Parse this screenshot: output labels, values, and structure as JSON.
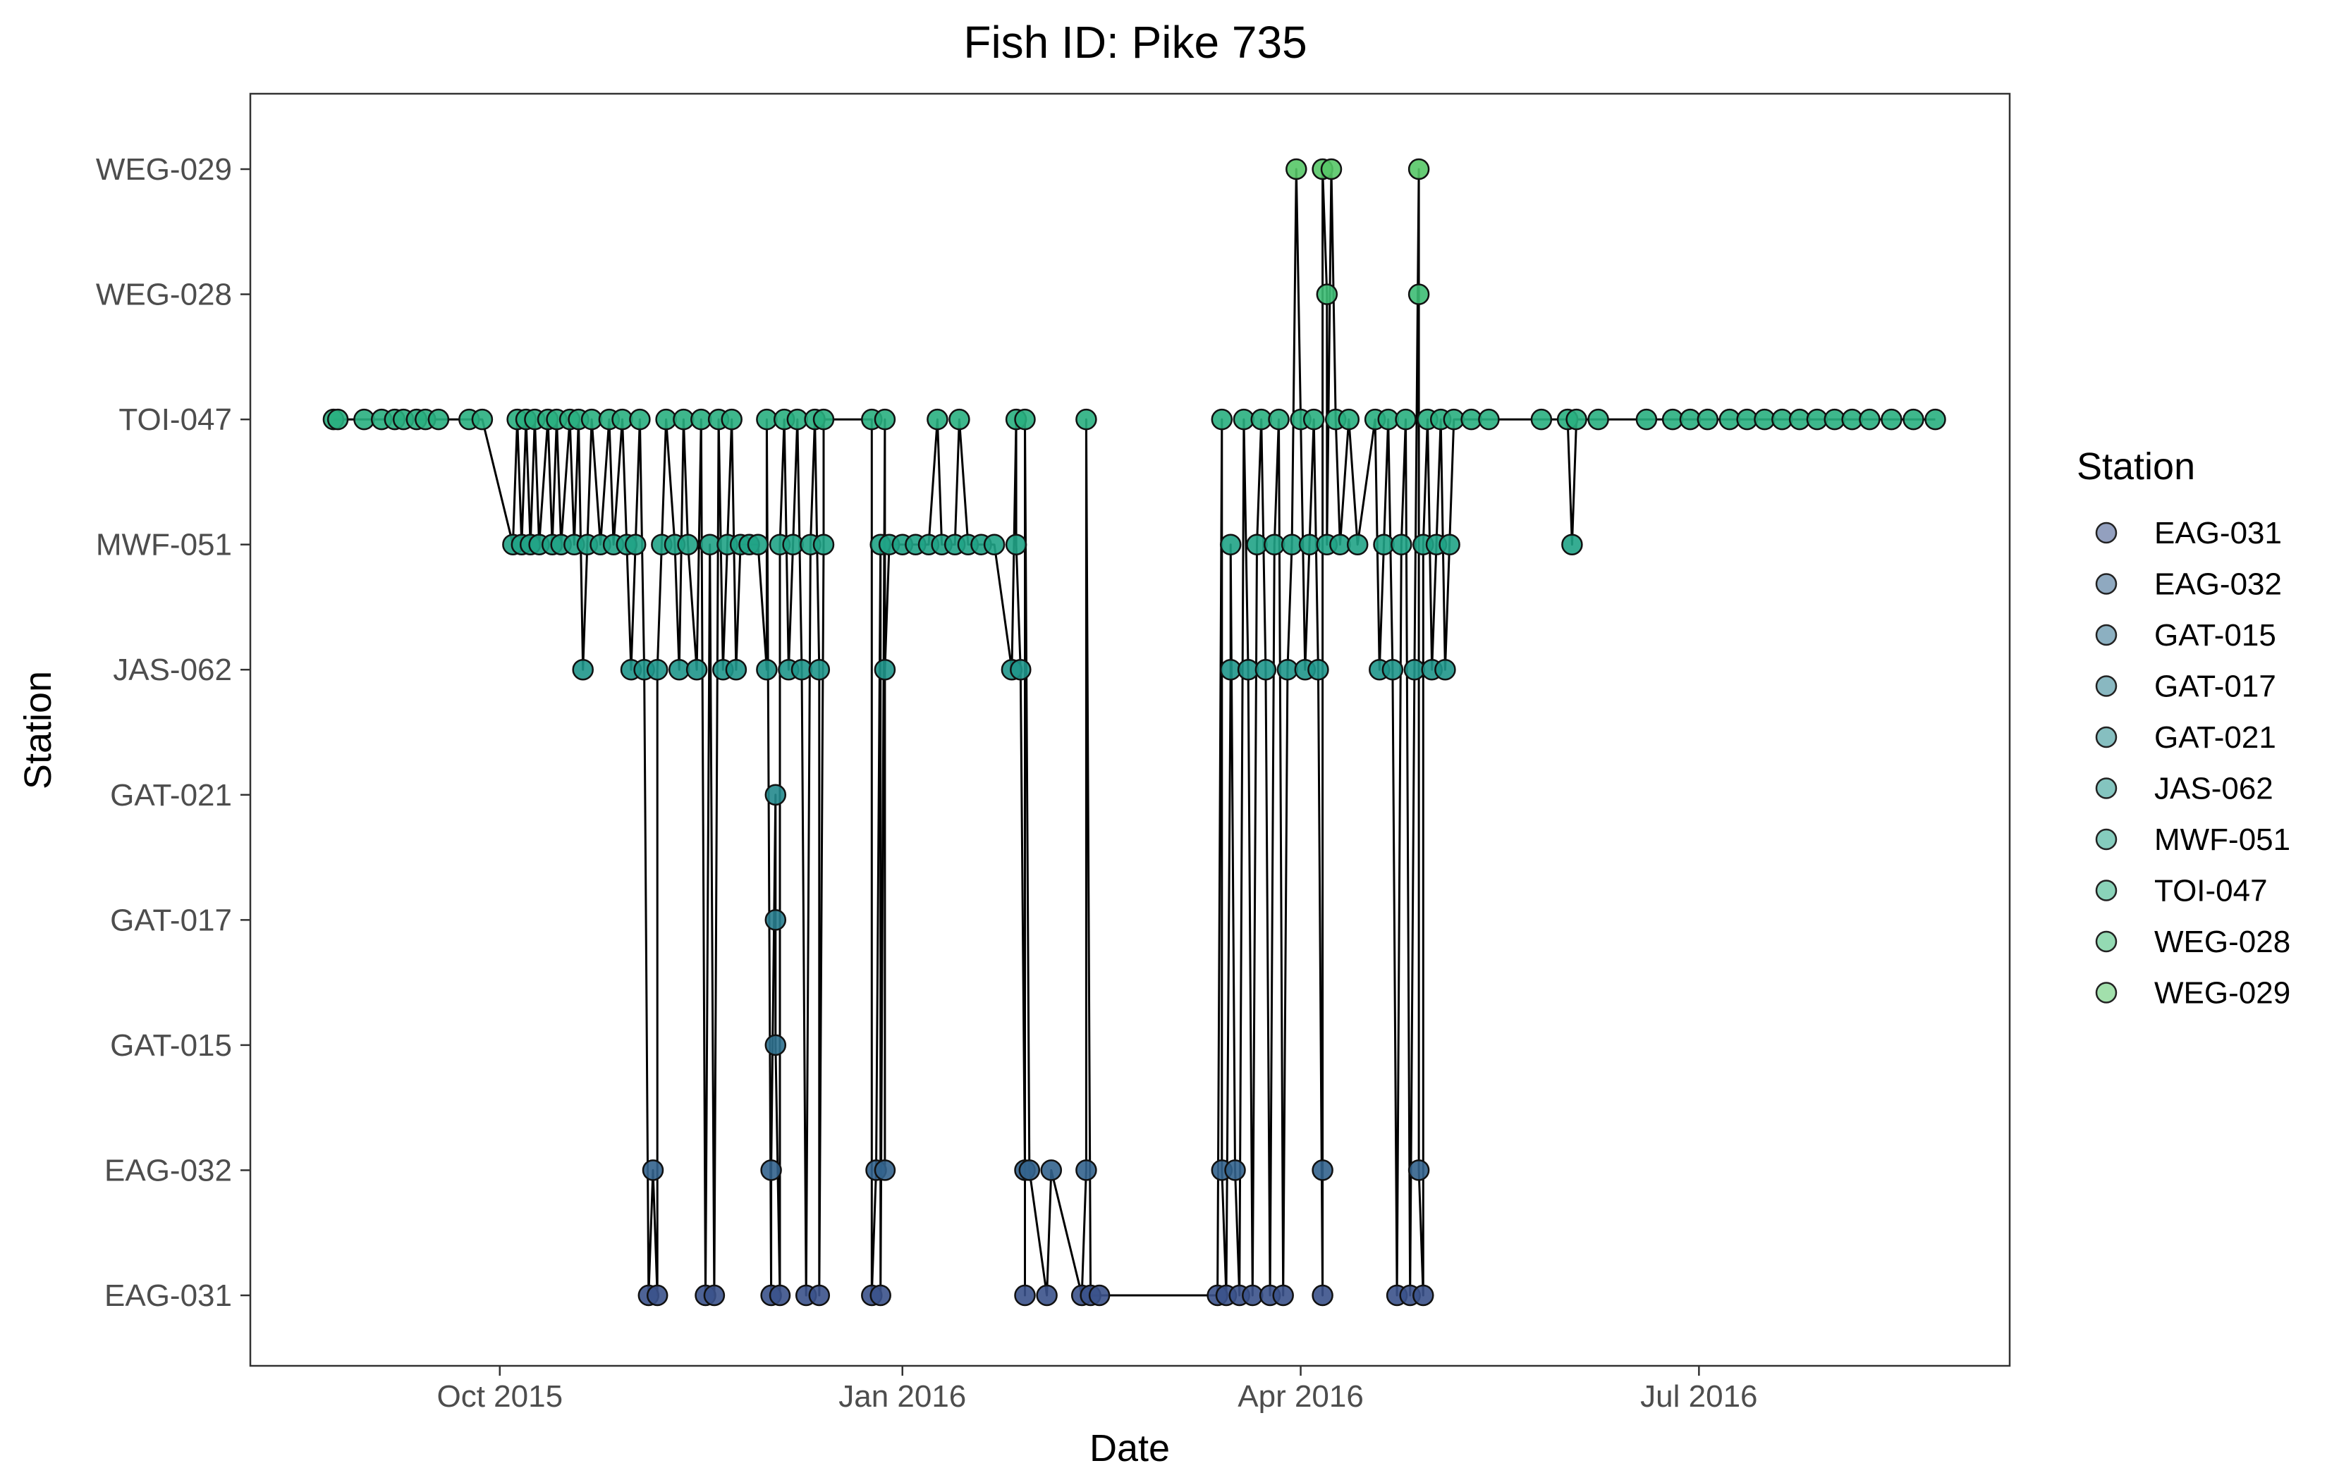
{
  "chart_data": {
    "type": "scatter",
    "title": "Fish ID: Pike 735",
    "xlabel": "Date",
    "ylabel": "Station",
    "x_axis_kind": "date",
    "xlim": [
      "2015-08-05",
      "2016-09-10"
    ],
    "x_ticks": [
      {
        "date": "2015-10-01",
        "label": "Oct 2015"
      },
      {
        "date": "2016-01-01",
        "label": "Jan 2016"
      },
      {
        "date": "2016-04-01",
        "label": "Apr 2016"
      },
      {
        "date": "2016-07-01",
        "label": "Jul 2016"
      }
    ],
    "categories": [
      "EAG-031",
      "EAG-032",
      "GAT-015",
      "GAT-017",
      "GAT-021",
      "JAS-062",
      "MWF-051",
      "TOI-047",
      "WEG-028",
      "WEG-029"
    ],
    "grid": false,
    "connected_line": true,
    "legend": {
      "title": "Station",
      "position": "right",
      "entries": [
        "EAG-031",
        "EAG-032",
        "GAT-015",
        "GAT-017",
        "GAT-021",
        "JAS-062",
        "MWF-051",
        "TOI-047",
        "WEG-028",
        "WEG-029"
      ]
    },
    "colors": {
      "EAG-031": "#3b528b",
      "EAG-032": "#33638d",
      "GAT-015": "#2d708e",
      "GAT-017": "#287d8e",
      "GAT-021": "#238a8d",
      "JAS-062": "#1f968b",
      "MWF-051": "#20a386",
      "TOI-047": "#29af7f",
      "WEG-028": "#3dbc74",
      "WEG-029": "#56c667"
    },
    "points": [
      {
        "x": "2015-08-24",
        "y": "TOI-047"
      },
      {
        "x": "2015-08-25",
        "y": "TOI-047"
      },
      {
        "x": "2015-08-31",
        "y": "TOI-047"
      },
      {
        "x": "2015-09-04",
        "y": "TOI-047"
      },
      {
        "x": "2015-09-07",
        "y": "TOI-047"
      },
      {
        "x": "2015-09-09",
        "y": "TOI-047"
      },
      {
        "x": "2015-09-12",
        "y": "TOI-047"
      },
      {
        "x": "2015-09-14",
        "y": "TOI-047"
      },
      {
        "x": "2015-09-17",
        "y": "TOI-047"
      },
      {
        "x": "2015-09-24",
        "y": "TOI-047"
      },
      {
        "x": "2015-09-27",
        "y": "TOI-047"
      },
      {
        "x": "2015-10-04",
        "y": "MWF-051"
      },
      {
        "x": "2015-10-05",
        "y": "TOI-047"
      },
      {
        "x": "2015-10-06",
        "y": "MWF-051"
      },
      {
        "x": "2015-10-07",
        "y": "TOI-047"
      },
      {
        "x": "2015-10-08",
        "y": "MWF-051"
      },
      {
        "x": "2015-10-09",
        "y": "TOI-047"
      },
      {
        "x": "2015-10-10",
        "y": "MWF-051"
      },
      {
        "x": "2015-10-12",
        "y": "TOI-047"
      },
      {
        "x": "2015-10-13",
        "y": "MWF-051"
      },
      {
        "x": "2015-10-14",
        "y": "TOI-047"
      },
      {
        "x": "2015-10-15",
        "y": "MWF-051"
      },
      {
        "x": "2015-10-17",
        "y": "TOI-047"
      },
      {
        "x": "2015-10-18",
        "y": "MWF-051"
      },
      {
        "x": "2015-10-19",
        "y": "TOI-047"
      },
      {
        "x": "2015-10-20",
        "y": "JAS-062"
      },
      {
        "x": "2015-10-21",
        "y": "MWF-051"
      },
      {
        "x": "2015-10-22",
        "y": "TOI-047"
      },
      {
        "x": "2015-10-24",
        "y": "MWF-051"
      },
      {
        "x": "2015-10-26",
        "y": "TOI-047"
      },
      {
        "x": "2015-10-27",
        "y": "MWF-051"
      },
      {
        "x": "2015-10-29",
        "y": "TOI-047"
      },
      {
        "x": "2015-10-30",
        "y": "MWF-051"
      },
      {
        "x": "2015-10-31",
        "y": "JAS-062"
      },
      {
        "x": "2015-11-01",
        "y": "MWF-051"
      },
      {
        "x": "2015-11-02",
        "y": "TOI-047"
      },
      {
        "x": "2015-11-03",
        "y": "JAS-062"
      },
      {
        "x": "2015-11-04",
        "y": "EAG-031"
      },
      {
        "x": "2015-11-05",
        "y": "EAG-032"
      },
      {
        "x": "2015-11-06",
        "y": "EAG-031"
      },
      {
        "x": "2015-11-06",
        "y": "JAS-062"
      },
      {
        "x": "2015-11-07",
        "y": "MWF-051"
      },
      {
        "x": "2015-11-08",
        "y": "TOI-047"
      },
      {
        "x": "2015-11-10",
        "y": "MWF-051"
      },
      {
        "x": "2015-11-11",
        "y": "JAS-062"
      },
      {
        "x": "2015-11-12",
        "y": "TOI-047"
      },
      {
        "x": "2015-11-13",
        "y": "MWF-051"
      },
      {
        "x": "2015-11-15",
        "y": "JAS-062"
      },
      {
        "x": "2015-11-16",
        "y": "TOI-047"
      },
      {
        "x": "2015-11-17",
        "y": "EAG-031"
      },
      {
        "x": "2015-11-18",
        "y": "MWF-051"
      },
      {
        "x": "2015-11-19",
        "y": "EAG-031"
      },
      {
        "x": "2015-11-20",
        "y": "TOI-047"
      },
      {
        "x": "2015-11-21",
        "y": "JAS-062"
      },
      {
        "x": "2015-11-22",
        "y": "MWF-051"
      },
      {
        "x": "2015-11-23",
        "y": "TOI-047"
      },
      {
        "x": "2015-11-24",
        "y": "JAS-062"
      },
      {
        "x": "2015-11-25",
        "y": "MWF-051"
      },
      {
        "x": "2015-11-27",
        "y": "MWF-051"
      },
      {
        "x": "2015-11-29",
        "y": "MWF-051"
      },
      {
        "x": "2015-12-01",
        "y": "JAS-062"
      },
      {
        "x": "2015-12-01",
        "y": "TOI-047"
      },
      {
        "x": "2015-12-02",
        "y": "EAG-031"
      },
      {
        "x": "2015-12-02",
        "y": "EAG-032"
      },
      {
        "x": "2015-12-03",
        "y": "GAT-021"
      },
      {
        "x": "2015-12-03",
        "y": "GAT-017"
      },
      {
        "x": "2015-12-03",
        "y": "GAT-015"
      },
      {
        "x": "2015-12-04",
        "y": "EAG-031"
      },
      {
        "x": "2015-12-04",
        "y": "MWF-051"
      },
      {
        "x": "2015-12-05",
        "y": "TOI-047"
      },
      {
        "x": "2015-12-06",
        "y": "JAS-062"
      },
      {
        "x": "2015-12-07",
        "y": "MWF-051"
      },
      {
        "x": "2015-12-08",
        "y": "TOI-047"
      },
      {
        "x": "2015-12-09",
        "y": "JAS-062"
      },
      {
        "x": "2015-12-10",
        "y": "EAG-031"
      },
      {
        "x": "2015-12-11",
        "y": "MWF-051"
      },
      {
        "x": "2015-12-12",
        "y": "TOI-047"
      },
      {
        "x": "2015-12-13",
        "y": "JAS-062"
      },
      {
        "x": "2015-12-13",
        "y": "EAG-031"
      },
      {
        "x": "2015-12-14",
        "y": "MWF-051"
      },
      {
        "x": "2015-12-14",
        "y": "TOI-047"
      },
      {
        "x": "2015-12-25",
        "y": "TOI-047"
      },
      {
        "x": "2015-12-25",
        "y": "EAG-031"
      },
      {
        "x": "2015-12-26",
        "y": "EAG-032"
      },
      {
        "x": "2015-12-27",
        "y": "MWF-051"
      },
      {
        "x": "2015-12-27",
        "y": "EAG-031"
      },
      {
        "x": "2015-12-28",
        "y": "TOI-047"
      },
      {
        "x": "2015-12-28",
        "y": "EAG-032"
      },
      {
        "x": "2015-12-28",
        "y": "JAS-062"
      },
      {
        "x": "2015-12-29",
        "y": "MWF-051"
      },
      {
        "x": "2016-01-01",
        "y": "MWF-051"
      },
      {
        "x": "2016-01-04",
        "y": "MWF-051"
      },
      {
        "x": "2016-01-07",
        "y": "MWF-051"
      },
      {
        "x": "2016-01-09",
        "y": "TOI-047"
      },
      {
        "x": "2016-01-10",
        "y": "MWF-051"
      },
      {
        "x": "2016-01-13",
        "y": "MWF-051"
      },
      {
        "x": "2016-01-14",
        "y": "TOI-047"
      },
      {
        "x": "2016-01-16",
        "y": "MWF-051"
      },
      {
        "x": "2016-01-19",
        "y": "MWF-051"
      },
      {
        "x": "2016-01-22",
        "y": "MWF-051"
      },
      {
        "x": "2016-01-26",
        "y": "JAS-062"
      },
      {
        "x": "2016-01-27",
        "y": "TOI-047"
      },
      {
        "x": "2016-01-27",
        "y": "MWF-051"
      },
      {
        "x": "2016-01-28",
        "y": "JAS-062"
      },
      {
        "x": "2016-01-29",
        "y": "EAG-032"
      },
      {
        "x": "2016-01-29",
        "y": "EAG-031"
      },
      {
        "x": "2016-01-29",
        "y": "TOI-047"
      },
      {
        "x": "2016-01-30",
        "y": "EAG-032"
      },
      {
        "x": "2016-02-03",
        "y": "EAG-031"
      },
      {
        "x": "2016-02-04",
        "y": "EAG-032"
      },
      {
        "x": "2016-02-12",
        "y": "EAG-032"
      },
      {
        "x": "2016-02-11",
        "y": "EAG-031"
      },
      {
        "x": "2016-02-12",
        "y": "TOI-047"
      },
      {
        "x": "2016-02-13",
        "y": "EAG-031"
      },
      {
        "x": "2016-02-15",
        "y": "EAG-031"
      },
      {
        "x": "2016-03-13",
        "y": "EAG-031"
      },
      {
        "x": "2016-03-14",
        "y": "TOI-047"
      },
      {
        "x": "2016-03-14",
        "y": "EAG-032"
      },
      {
        "x": "2016-03-15",
        "y": "EAG-031"
      },
      {
        "x": "2016-03-16",
        "y": "JAS-062"
      },
      {
        "x": "2016-03-16",
        "y": "MWF-051"
      },
      {
        "x": "2016-03-17",
        "y": "EAG-032"
      },
      {
        "x": "2016-03-18",
        "y": "EAG-031"
      },
      {
        "x": "2016-03-19",
        "y": "TOI-047"
      },
      {
        "x": "2016-03-20",
        "y": "JAS-062"
      },
      {
        "x": "2016-03-21",
        "y": "EAG-031"
      },
      {
        "x": "2016-03-22",
        "y": "MWF-051"
      },
      {
        "x": "2016-03-23",
        "y": "TOI-047"
      },
      {
        "x": "2016-03-24",
        "y": "JAS-062"
      },
      {
        "x": "2016-03-25",
        "y": "EAG-031"
      },
      {
        "x": "2016-03-26",
        "y": "MWF-051"
      },
      {
        "x": "2016-03-27",
        "y": "TOI-047"
      },
      {
        "x": "2016-03-28",
        "y": "EAG-031"
      },
      {
        "x": "2016-03-29",
        "y": "JAS-062"
      },
      {
        "x": "2016-03-30",
        "y": "MWF-051"
      },
      {
        "x": "2016-03-31",
        "y": "WEG-029"
      },
      {
        "x": "2016-04-01",
        "y": "TOI-047"
      },
      {
        "x": "2016-04-02",
        "y": "JAS-062"
      },
      {
        "x": "2016-04-03",
        "y": "MWF-051"
      },
      {
        "x": "2016-04-04",
        "y": "TOI-047"
      },
      {
        "x": "2016-04-05",
        "y": "JAS-062"
      },
      {
        "x": "2016-04-06",
        "y": "EAG-031"
      },
      {
        "x": "2016-04-06",
        "y": "EAG-032"
      },
      {
        "x": "2016-04-06",
        "y": "WEG-029"
      },
      {
        "x": "2016-04-07",
        "y": "WEG-028"
      },
      {
        "x": "2016-04-07",
        "y": "MWF-051"
      },
      {
        "x": "2016-04-08",
        "y": "WEG-029"
      },
      {
        "x": "2016-04-09",
        "y": "TOI-047"
      },
      {
        "x": "2016-04-10",
        "y": "MWF-051"
      },
      {
        "x": "2016-04-12",
        "y": "TOI-047"
      },
      {
        "x": "2016-04-14",
        "y": "MWF-051"
      },
      {
        "x": "2016-04-18",
        "y": "TOI-047"
      },
      {
        "x": "2016-04-19",
        "y": "JAS-062"
      },
      {
        "x": "2016-04-20",
        "y": "MWF-051"
      },
      {
        "x": "2016-04-21",
        "y": "TOI-047"
      },
      {
        "x": "2016-04-22",
        "y": "JAS-062"
      },
      {
        "x": "2016-04-23",
        "y": "EAG-031"
      },
      {
        "x": "2016-04-24",
        "y": "MWF-051"
      },
      {
        "x": "2016-04-25",
        "y": "TOI-047"
      },
      {
        "x": "2016-04-26",
        "y": "EAG-031"
      },
      {
        "x": "2016-04-27",
        "y": "JAS-062"
      },
      {
        "x": "2016-04-28",
        "y": "WEG-029"
      },
      {
        "x": "2016-04-28",
        "y": "WEG-028"
      },
      {
        "x": "2016-04-28",
        "y": "EAG-032"
      },
      {
        "x": "2016-04-29",
        "y": "EAG-031"
      },
      {
        "x": "2016-04-29",
        "y": "MWF-051"
      },
      {
        "x": "2016-04-30",
        "y": "TOI-047"
      },
      {
        "x": "2016-05-01",
        "y": "JAS-062"
      },
      {
        "x": "2016-05-02",
        "y": "MWF-051"
      },
      {
        "x": "2016-05-03",
        "y": "TOI-047"
      },
      {
        "x": "2016-05-04",
        "y": "JAS-062"
      },
      {
        "x": "2016-05-05",
        "y": "MWF-051"
      },
      {
        "x": "2016-05-06",
        "y": "TOI-047"
      },
      {
        "x": "2016-05-10",
        "y": "TOI-047"
      },
      {
        "x": "2016-05-14",
        "y": "TOI-047"
      },
      {
        "x": "2016-05-26",
        "y": "TOI-047"
      },
      {
        "x": "2016-06-01",
        "y": "TOI-047"
      },
      {
        "x": "2016-06-02",
        "y": "MWF-051"
      },
      {
        "x": "2016-06-03",
        "y": "TOI-047"
      },
      {
        "x": "2016-06-08",
        "y": "TOI-047"
      },
      {
        "x": "2016-06-19",
        "y": "TOI-047"
      },
      {
        "x": "2016-06-25",
        "y": "TOI-047"
      },
      {
        "x": "2016-06-29",
        "y": "TOI-047"
      },
      {
        "x": "2016-07-03",
        "y": "TOI-047"
      },
      {
        "x": "2016-07-08",
        "y": "TOI-047"
      },
      {
        "x": "2016-07-12",
        "y": "TOI-047"
      },
      {
        "x": "2016-07-16",
        "y": "TOI-047"
      },
      {
        "x": "2016-07-20",
        "y": "TOI-047"
      },
      {
        "x": "2016-07-24",
        "y": "TOI-047"
      },
      {
        "x": "2016-07-28",
        "y": "TOI-047"
      },
      {
        "x": "2016-08-01",
        "y": "TOI-047"
      },
      {
        "x": "2016-08-05",
        "y": "TOI-047"
      },
      {
        "x": "2016-08-09",
        "y": "TOI-047"
      },
      {
        "x": "2016-08-14",
        "y": "TOI-047"
      },
      {
        "x": "2016-08-19",
        "y": "TOI-047"
      },
      {
        "x": "2016-08-24",
        "y": "TOI-047"
      }
    ]
  }
}
